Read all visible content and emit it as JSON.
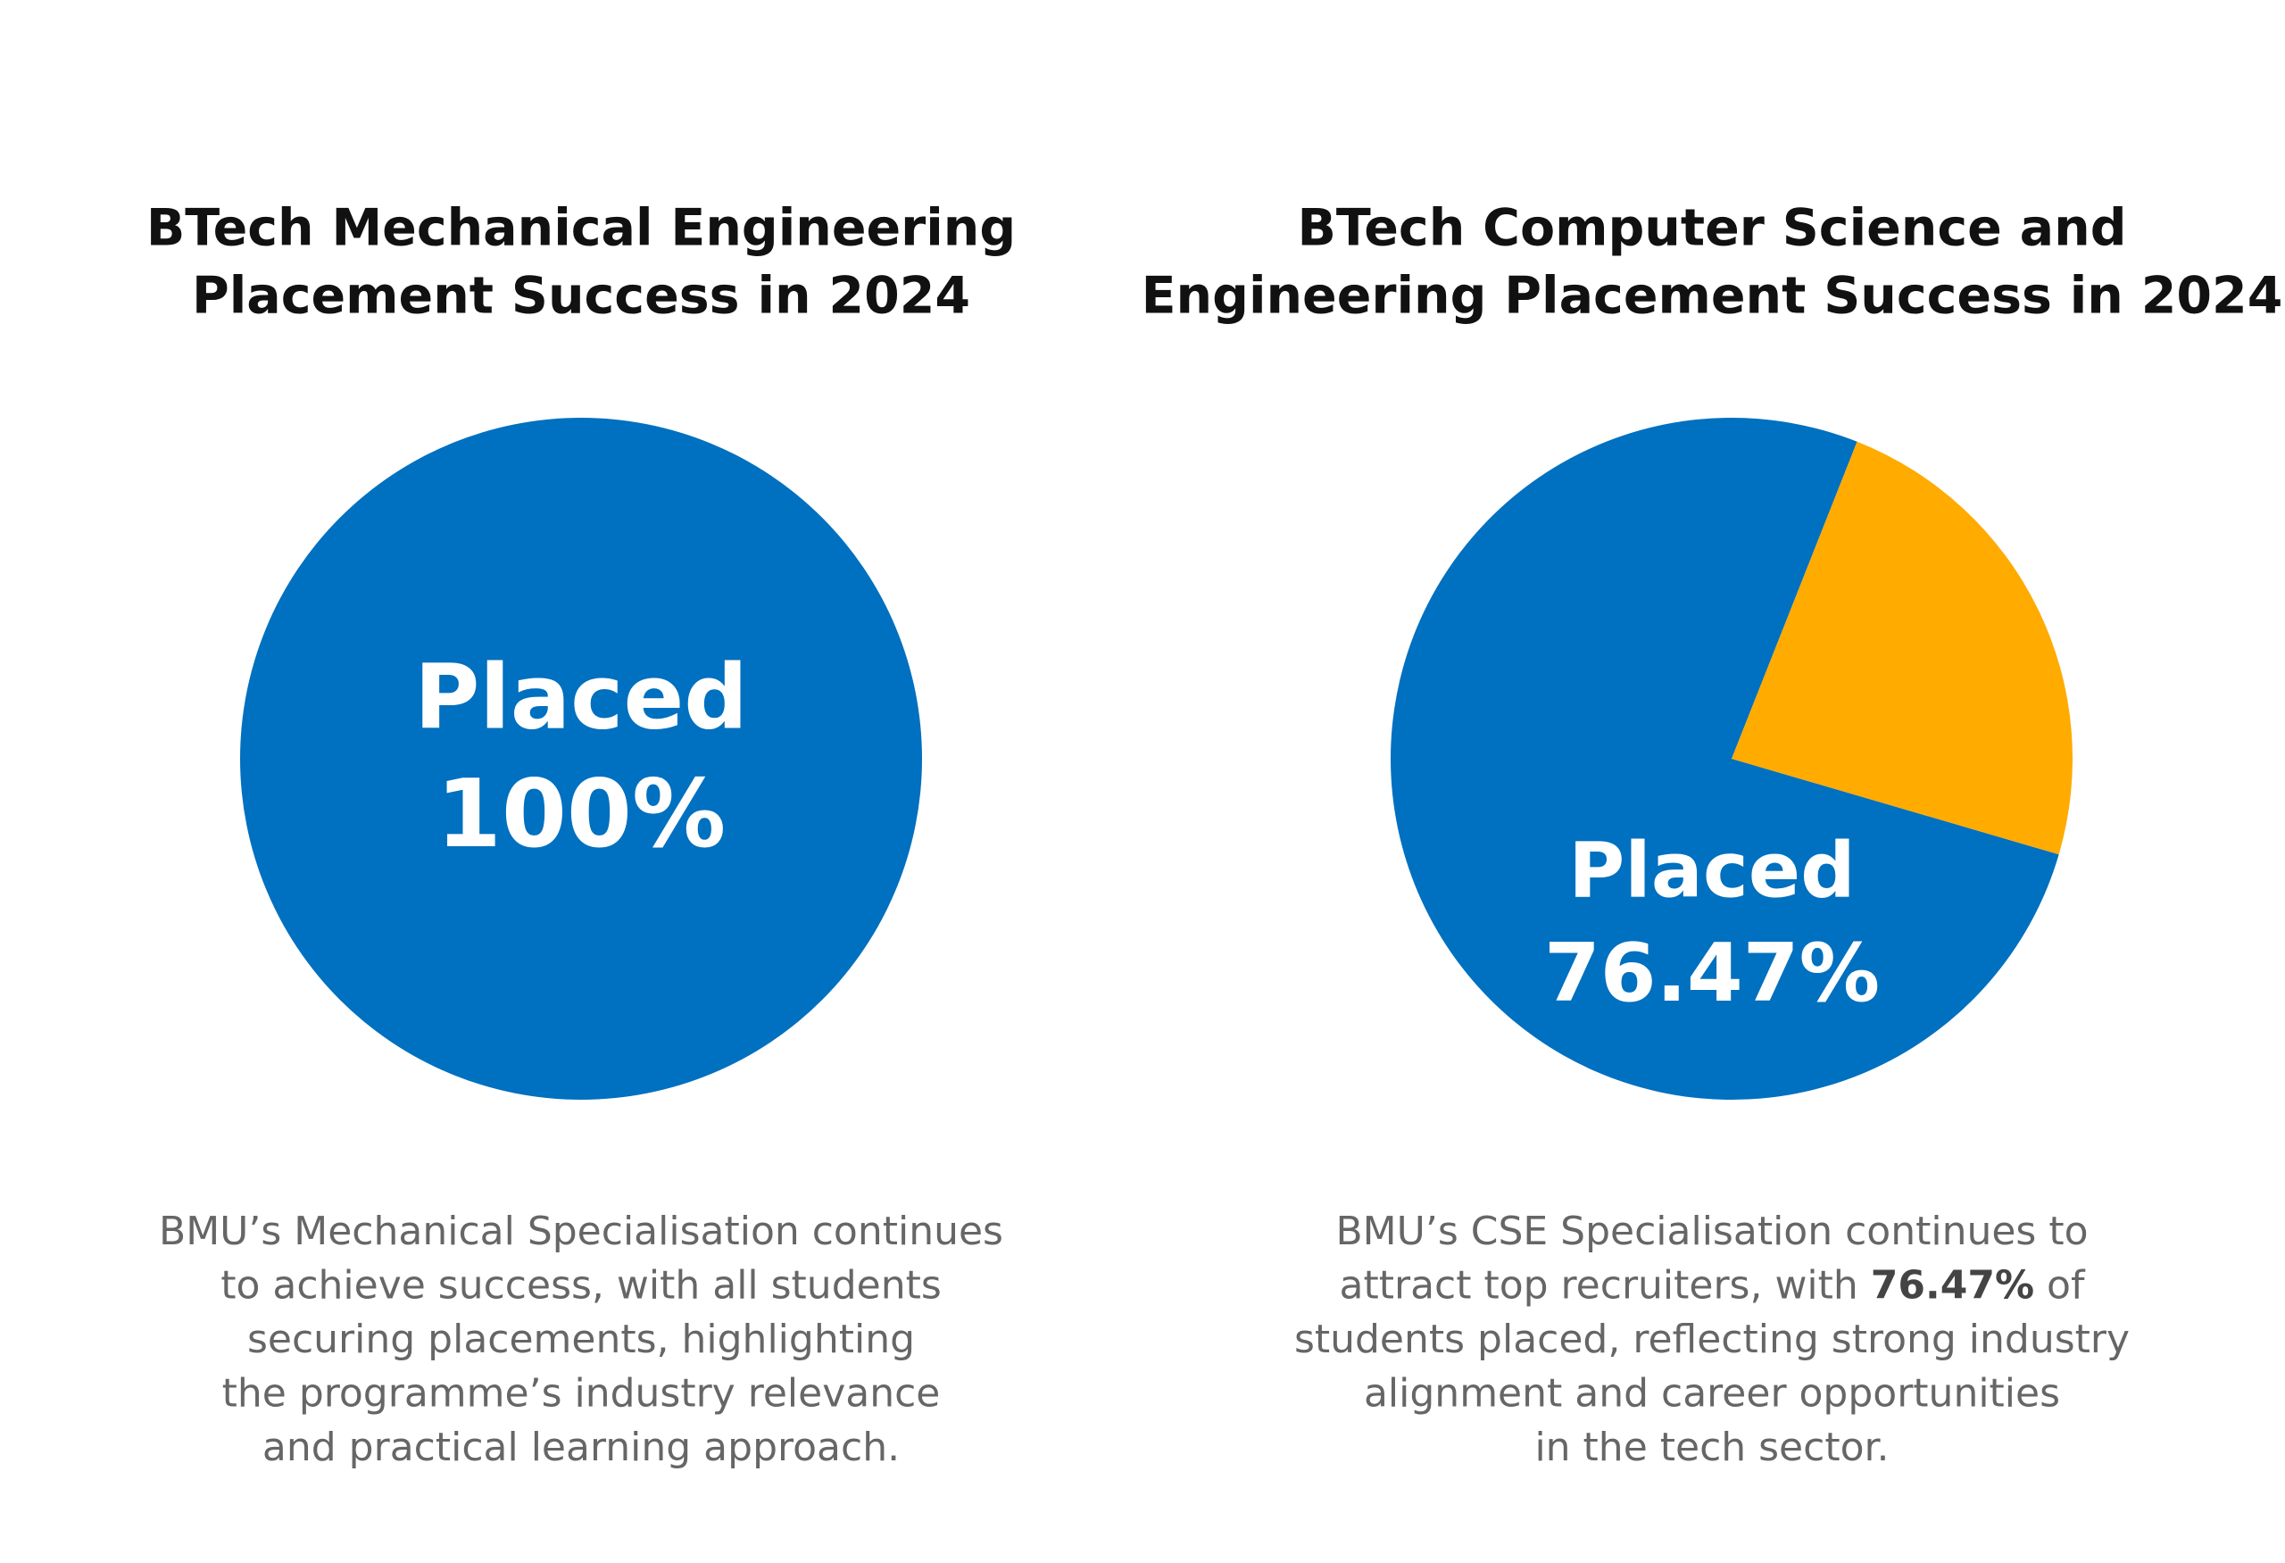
{
  "chart_data": [
    {
      "type": "pie",
      "title": [
        "BTech Mechanical Engineering",
        "Placement Success in 2024"
      ],
      "categories": [
        "Placed"
      ],
      "values": [
        100
      ],
      "value_labels": [
        "100%"
      ],
      "colors": [
        "#0070c0"
      ],
      "caption": [
        [
          {
            "text": "BMU’s Mechanical Specialisation continues"
          }
        ],
        [
          {
            "text": "to achieve success, with all students"
          }
        ],
        [
          {
            "text": "securing placements, highlighting"
          }
        ],
        [
          {
            "text": "the programme’s industry relevance"
          }
        ],
        [
          {
            "text": "and practical learning approach."
          }
        ]
      ]
    },
    {
      "type": "pie",
      "title": [
        "BTech Computer Science and",
        "Engineering Placement Success in 2024"
      ],
      "categories": [
        "Placed",
        null
      ],
      "values": [
        76.47,
        23.53
      ],
      "value_labels": [
        "76.47%",
        null
      ],
      "colors": [
        "#0070c0",
        "#ffab00"
      ],
      "caption": [
        [
          {
            "text": "BMU’s CSE Specialisation continues to"
          }
        ],
        [
          {
            "text": "attract top recruiters, with "
          },
          {
            "text": "76.47%",
            "bold": true
          },
          {
            "text": " of"
          }
        ],
        [
          {
            "text": "students placed, reflecting strong industry"
          }
        ],
        [
          {
            "text": "alignment and career opportunities"
          }
        ],
        [
          {
            "text": "in the tech sector."
          }
        ]
      ]
    }
  ]
}
